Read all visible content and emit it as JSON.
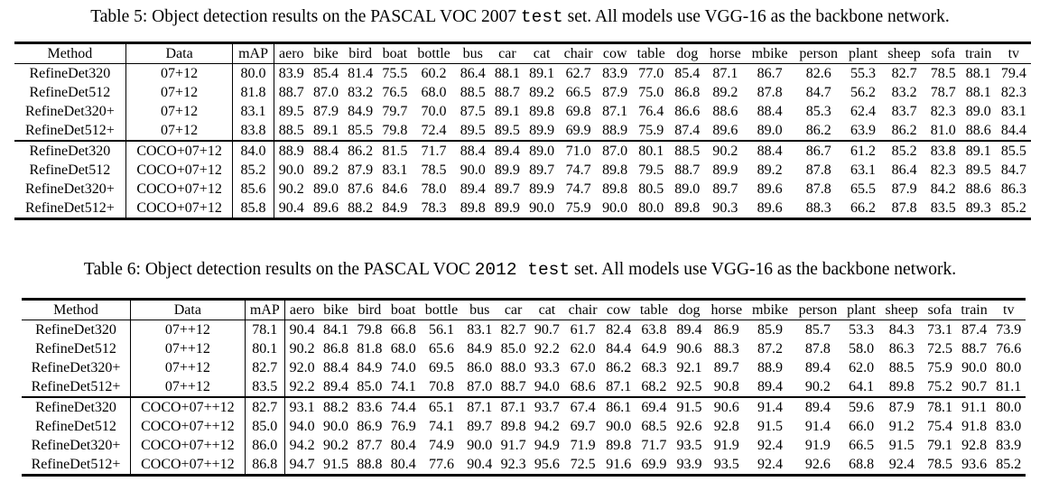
{
  "table5": {
    "caption_prefix": "Table 5: Object detection results on the PASCAL VOC 2007",
    "caption_code": "test",
    "caption_suffix": "set. All models use VGG-16 as the backbone network.",
    "headers": [
      "Method",
      "Data",
      "mAP",
      "aero",
      "bike",
      "bird",
      "boat",
      "bottle",
      "bus",
      "car",
      "cat",
      "chair",
      "cow",
      "table",
      "dog",
      "horse",
      "mbike",
      "person",
      "plant",
      "sheep",
      "sofa",
      "train",
      "tv"
    ],
    "rows": [
      [
        "RefineDet320",
        "07+12",
        "80.0",
        "83.9",
        "85.4",
        "81.4",
        "75.5",
        "60.2",
        "86.4",
        "88.1",
        "89.1",
        "62.7",
        "83.9",
        "77.0",
        "85.4",
        "87.1",
        "86.7",
        "82.6",
        "55.3",
        "82.7",
        "78.5",
        "88.1",
        "79.4"
      ],
      [
        "RefineDet512",
        "07+12",
        "81.8",
        "88.7",
        "87.0",
        "83.2",
        "76.5",
        "68.0",
        "88.5",
        "88.7",
        "89.2",
        "66.5",
        "87.9",
        "75.0",
        "86.8",
        "89.2",
        "87.8",
        "84.7",
        "56.2",
        "83.2",
        "78.7",
        "88.1",
        "82.3"
      ],
      [
        "RefineDet320+",
        "07+12",
        "83.1",
        "89.5",
        "87.9",
        "84.9",
        "79.7",
        "70.0",
        "87.5",
        "89.1",
        "89.8",
        "69.8",
        "87.1",
        "76.4",
        "86.6",
        "88.6",
        "88.4",
        "85.3",
        "62.4",
        "83.7",
        "82.3",
        "89.0",
        "83.1"
      ],
      [
        "RefineDet512+",
        "07+12",
        "83.8",
        "88.5",
        "89.1",
        "85.5",
        "79.8",
        "72.4",
        "89.5",
        "89.5",
        "89.9",
        "69.9",
        "88.9",
        "75.9",
        "87.4",
        "89.6",
        "89.0",
        "86.2",
        "63.9",
        "86.2",
        "81.0",
        "88.6",
        "84.4"
      ],
      [
        "RefineDet320",
        "COCO+07+12",
        "84.0",
        "88.9",
        "88.4",
        "86.2",
        "81.5",
        "71.7",
        "88.4",
        "89.4",
        "89.0",
        "71.0",
        "87.0",
        "80.1",
        "88.5",
        "90.2",
        "88.4",
        "86.7",
        "61.2",
        "85.2",
        "83.8",
        "89.1",
        "85.5"
      ],
      [
        "RefineDet512",
        "COCO+07+12",
        "85.2",
        "90.0",
        "89.2",
        "87.9",
        "83.1",
        "78.5",
        "90.0",
        "89.9",
        "89.7",
        "74.7",
        "89.8",
        "79.5",
        "88.7",
        "89.9",
        "89.2",
        "87.8",
        "63.1",
        "86.4",
        "82.3",
        "89.5",
        "84.7"
      ],
      [
        "RefineDet320+",
        "COCO+07+12",
        "85.6",
        "90.2",
        "89.0",
        "87.6",
        "84.6",
        "78.0",
        "89.4",
        "89.7",
        "89.9",
        "74.7",
        "89.8",
        "80.5",
        "89.0",
        "89.7",
        "89.6",
        "87.8",
        "65.5",
        "87.9",
        "84.2",
        "88.6",
        "86.3"
      ],
      [
        "RefineDet512+",
        "COCO+07+12",
        "85.8",
        "90.4",
        "89.6",
        "88.2",
        "84.9",
        "78.3",
        "89.8",
        "89.9",
        "90.0",
        "75.9",
        "90.0",
        "80.0",
        "89.8",
        "90.3",
        "89.6",
        "88.3",
        "66.2",
        "87.8",
        "83.5",
        "89.3",
        "85.2"
      ]
    ]
  },
  "table6": {
    "caption_prefix": "Table 6: Object detection results on the PASCAL VOC",
    "caption_code": "2012 test",
    "caption_suffix": "set. All models use VGG-16 as the backbone network.",
    "headers": [
      "Method",
      "Data",
      "mAP",
      "aero",
      "bike",
      "bird",
      "boat",
      "bottle",
      "bus",
      "car",
      "cat",
      "chair",
      "cow",
      "table",
      "dog",
      "horse",
      "mbike",
      "person",
      "plant",
      "sheep",
      "sofa",
      "train",
      "tv"
    ],
    "rows": [
      [
        "RefineDet320",
        "07++12",
        "78.1",
        "90.4",
        "84.1",
        "79.8",
        "66.8",
        "56.1",
        "83.1",
        "82.7",
        "90.7",
        "61.7",
        "82.4",
        "63.8",
        "89.4",
        "86.9",
        "85.9",
        "85.7",
        "53.3",
        "84.3",
        "73.1",
        "87.4",
        "73.9"
      ],
      [
        "RefineDet512",
        "07++12",
        "80.1",
        "90.2",
        "86.8",
        "81.8",
        "68.0",
        "65.6",
        "84.9",
        "85.0",
        "92.2",
        "62.0",
        "84.4",
        "64.9",
        "90.6",
        "88.3",
        "87.2",
        "87.8",
        "58.0",
        "86.3",
        "72.5",
        "88.7",
        "76.6"
      ],
      [
        "RefineDet320+",
        "07++12",
        "82.7",
        "92.0",
        "88.4",
        "84.9",
        "74.0",
        "69.5",
        "86.0",
        "88.0",
        "93.3",
        "67.0",
        "86.2",
        "68.3",
        "92.1",
        "89.7",
        "88.9",
        "89.4",
        "62.0",
        "88.5",
        "75.9",
        "90.0",
        "80.0"
      ],
      [
        "RefineDet512+",
        "07++12",
        "83.5",
        "92.2",
        "89.4",
        "85.0",
        "74.1",
        "70.8",
        "87.0",
        "88.7",
        "94.0",
        "68.6",
        "87.1",
        "68.2",
        "92.5",
        "90.8",
        "89.4",
        "90.2",
        "64.1",
        "89.8",
        "75.2",
        "90.7",
        "81.1"
      ],
      [
        "RefineDet320",
        "COCO+07++12",
        "82.7",
        "93.1",
        "88.2",
        "83.6",
        "74.4",
        "65.1",
        "87.1",
        "87.1",
        "93.7",
        "67.4",
        "86.1",
        "69.4",
        "91.5",
        "90.6",
        "91.4",
        "89.4",
        "59.6",
        "87.9",
        "78.1",
        "91.1",
        "80.0"
      ],
      [
        "RefineDet512",
        "COCO+07++12",
        "85.0",
        "94.0",
        "90.0",
        "86.9",
        "76.9",
        "74.1",
        "89.7",
        "89.8",
        "94.2",
        "69.7",
        "90.0",
        "68.5",
        "92.6",
        "92.8",
        "91.5",
        "91.4",
        "66.0",
        "91.2",
        "75.4",
        "91.8",
        "83.0"
      ],
      [
        "RefineDet320+",
        "COCO+07++12",
        "86.0",
        "94.2",
        "90.2",
        "87.7",
        "80.4",
        "74.9",
        "90.0",
        "91.7",
        "94.9",
        "71.9",
        "89.8",
        "71.7",
        "93.5",
        "91.9",
        "92.4",
        "91.9",
        "66.5",
        "91.5",
        "79.1",
        "92.8",
        "83.9"
      ],
      [
        "RefineDet512+",
        "COCO+07++12",
        "86.8",
        "94.7",
        "91.5",
        "88.8",
        "80.4",
        "77.6",
        "90.4",
        "92.3",
        "95.6",
        "72.5",
        "91.6",
        "69.9",
        "93.9",
        "93.5",
        "92.4",
        "92.6",
        "68.8",
        "92.4",
        "78.5",
        "93.6",
        "85.2"
      ]
    ]
  }
}
